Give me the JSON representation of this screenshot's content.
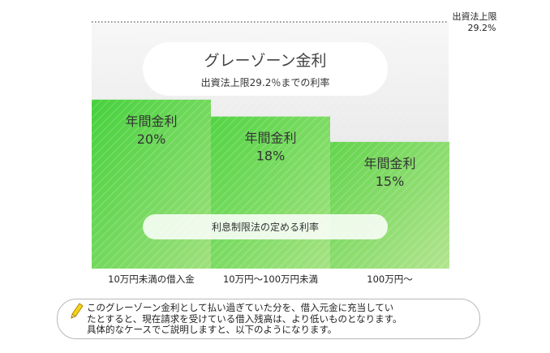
{
  "chart_data": {
    "type": "bar",
    "ylim": [
      0,
      30
    ],
    "categories": [
      "10万円未満の借入金",
      "10万円～100万円未満",
      "100万円～"
    ],
    "values": [
      20,
      18,
      15
    ],
    "bar_labels": [
      {
        "title": "年間金利",
        "value": "20%"
      },
      {
        "title": "年間金利",
        "value": "18%"
      },
      {
        "title": "年間金利",
        "value": "15%"
      }
    ],
    "upper_limit": {
      "value": 29.2,
      "label_line1": "出資法上限",
      "label_line2": "29.2%"
    },
    "grey_zone": {
      "title": "グレーゾーン金利",
      "subtitle": "出資法上限29.2％までの利率"
    },
    "interest_band_label": "利息制限法の定める利率",
    "colors": {
      "bar_bright": "#3fcf3a",
      "bar_light": "#9ee27a",
      "grey_zone": "#e9e9e9",
      "limit_line": "#555555"
    }
  },
  "note": {
    "icon": "pencil-icon",
    "lines": [
      "このグレーゾーン金利として払い過ぎていた分を、借入元金に充当してい",
      "たとすると、現在請求を受けている借入残高は、より低いものとなります。",
      "具体的なケースでご説明しますと、以下のようになります。"
    ]
  }
}
